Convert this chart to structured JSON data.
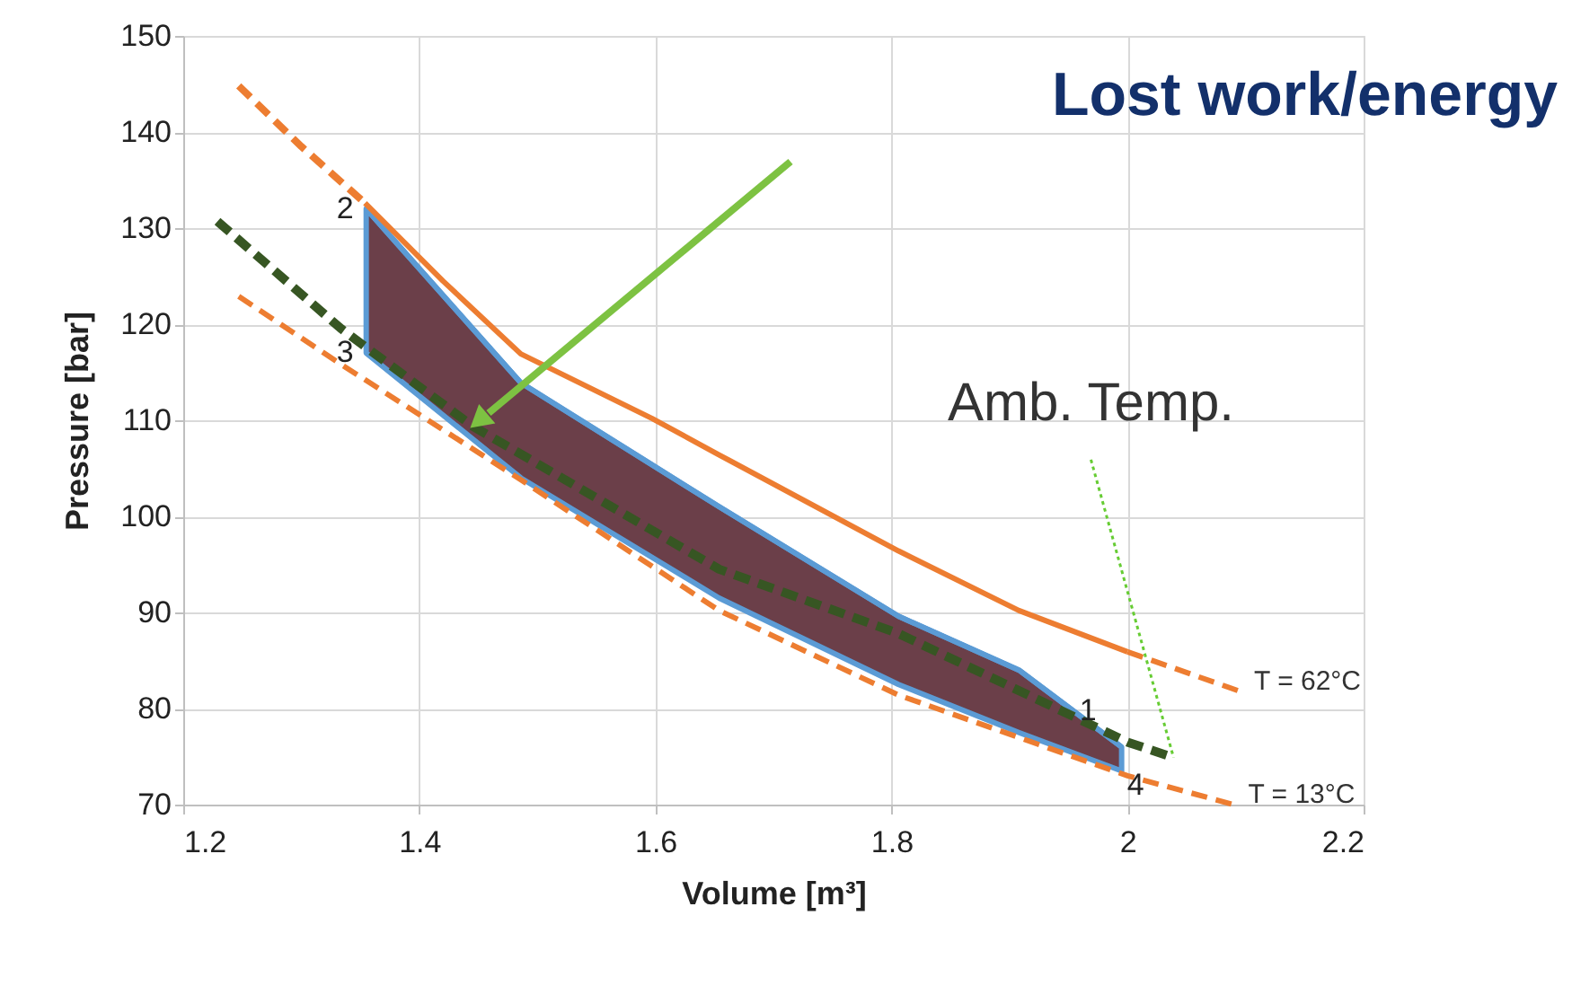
{
  "chart_data": {
    "type": "line",
    "xlabel": "Volume [m³]",
    "ylabel": "Pressure [bar]",
    "xlim": [
      1.2,
      2.2
    ],
    "xticks": [
      1.2,
      1.4,
      1.6,
      1.8,
      2,
      2.2
    ],
    "ylim": [
      70,
      150
    ],
    "yticks": [
      70,
      80,
      90,
      100,
      110,
      120,
      130,
      140,
      150
    ],
    "grid": true,
    "legend": false,
    "series": [
      {
        "color": "#5b9bd5",
        "line_style": "solid",
        "x": [
          1.355,
          1.486,
          1.654,
          1.806,
          1.908,
          1.995
        ],
        "values": [
          132,
          113.9,
          101,
          89.6,
          84,
          76
        ],
        "lower": [
          117,
          104,
          91.5,
          82.5,
          77.5,
          73.5
        ],
        "upper": [
          132,
          113.9,
          101,
          89.6,
          84,
          76
        ]
      },
      {
        "color": "#ed7d31",
        "line_style": "dashed",
        "x": [
          1.247,
          1.3,
          1.354
        ],
        "values": [
          144.8,
          138.5,
          132.6
        ]
      },
      {
        "color": "#ed7d31",
        "line_style": "solid",
        "x": [
          1.354,
          1.42,
          1.486,
          1.597,
          1.654,
          1.806,
          1.908,
          2.0
        ],
        "values": [
          132.6,
          124.5,
          116.9,
          110.2,
          106.4,
          96.4,
          90.2,
          85.9
        ]
      },
      {
        "name": "T = 62°C",
        "color": "#ed7d31",
        "line_style": "dashed",
        "x": [
          2.0,
          2.095
        ],
        "values": [
          85.9,
          81.8
        ]
      },
      {
        "name": "T = 13°C",
        "color": "#ed7d31",
        "line_style": "dashed",
        "x": [
          1.247,
          1.334,
          1.486,
          1.654,
          1.806,
          2.0,
          2.09
        ],
        "values": [
          122.9,
          115.8,
          103.8,
          90.2,
          81.4,
          73.0,
          70.0
        ]
      },
      {
        "color": "#375623",
        "line_style": "dashed",
        "x": [
          1.229,
          1.334,
          1.445,
          1.654,
          1.806,
          2.0,
          2.039
        ],
        "values": [
          130.7,
          119.5,
          109.4,
          94.5,
          87.8,
          76.5,
          74.9
        ]
      }
    ],
    "annotations": [
      "Lost work/energy",
      {
        "text": "Amb. Temp.",
        "x": 2.039,
        "y": 74.9
      },
      {
        "text": "2",
        "x": 1.355,
        "y": 132
      },
      {
        "text": "3",
        "x": 1.355,
        "y": 117
      },
      {
        "text": "1",
        "x": 1.995,
        "y": 76
      },
      {
        "text": "4",
        "x": 1.995,
        "y": 73.5
      }
    ]
  }
}
